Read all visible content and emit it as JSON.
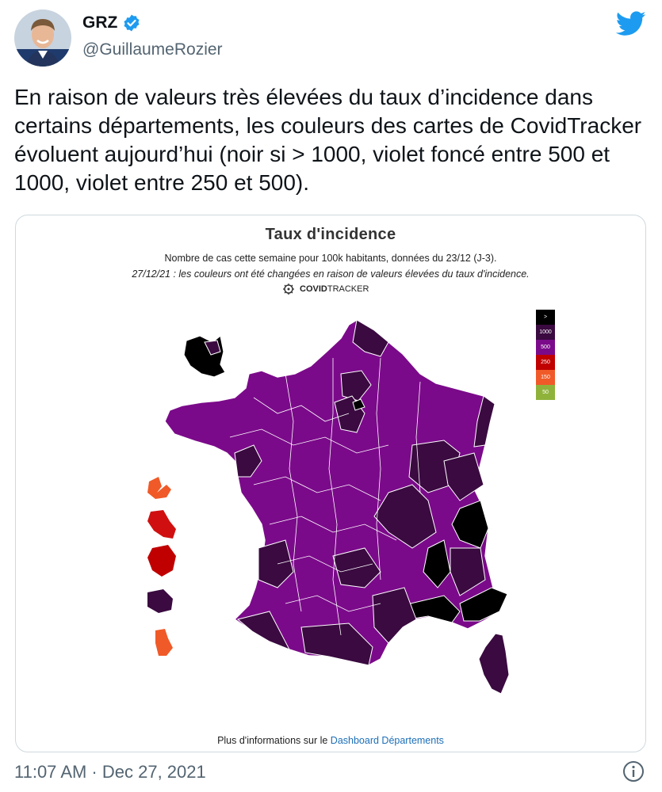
{
  "author": {
    "name": "GRZ",
    "handle": "@GuillaumeRozier"
  },
  "tweet": {
    "text": "En raison de valeurs très élevées du taux d’incidence dans certains départements, les couleurs des cartes de CovidTracker évoluent aujourd’hui (noir si > 1000, violet foncé entre 500 et 1000, violet entre 250 et 500).",
    "timestamp": "11:07 AM · Dec 27, 2021"
  },
  "map": {
    "title": "Taux d'incidence",
    "subtitle": "Nombre de cas cette semaine pour 100k habitants, données du 23/12 (J-3).",
    "note": "27/12/21 : les couleurs ont été changées en raison de valeurs élevées du taux d'incidence.",
    "brand_bold": "COVID",
    "brand_light": "TRACKER",
    "legend": [
      {
        "label": ">",
        "color": "#000000"
      },
      {
        "label": "1000",
        "color": "#3a0a40"
      },
      {
        "label": "500",
        "color": "#7b0a8a"
      },
      {
        "label": "250",
        "color": "#c00000"
      },
      {
        "label": "150",
        "color": "#f05a28"
      },
      {
        "label": "50",
        "color": "#8fb33a"
      }
    ],
    "footer_text": "Plus d'informations sur le ",
    "footer_link": "Dashboard Départements"
  },
  "colors": {
    "accent": "#1d9bf0",
    "black": "#000000",
    "dark_purple": "#3a0a40",
    "purple": "#7b0a8a",
    "red": "#d01010",
    "orange": "#f05a28"
  }
}
